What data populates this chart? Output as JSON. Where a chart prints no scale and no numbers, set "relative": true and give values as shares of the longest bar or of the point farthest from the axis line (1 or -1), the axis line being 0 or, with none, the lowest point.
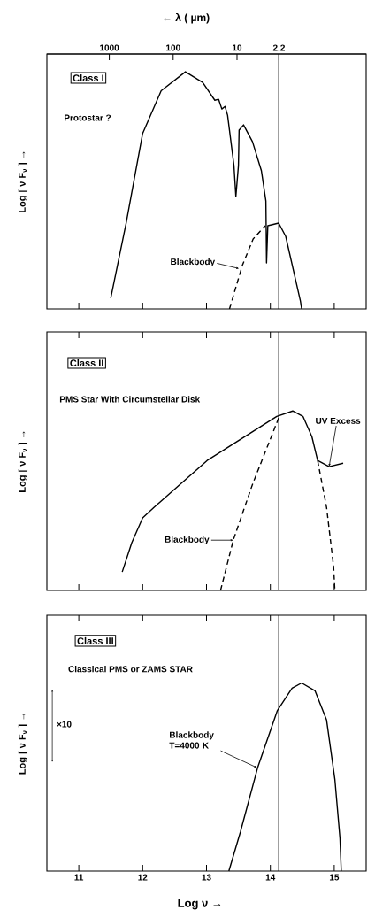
{
  "chart_data": [
    {
      "type": "line",
      "relative": true,
      "title": "Class I",
      "subtitle": "Protostar ?",
      "ylabel": "Log [ ν F$_{ν}$ ] →",
      "x2label": "← λ ( µm)",
      "xlim": [
        10.5,
        15.5
      ],
      "xticks": [
        11,
        12,
        13,
        14,
        15
      ],
      "tick_labels": false,
      "x2lim": [
        9500,
        0.095
      ],
      "x2ticks": [
        1000,
        100,
        10,
        2.2
      ],
      "log": "x2",
      "ref_lines": [
        {
          "axis": "x",
          "value": 14.13
        }
      ],
      "series": [
        {
          "color": "#000000",
          "line_style": "solid",
          "x": [
            11.5,
            11.74,
            12.0,
            12.29,
            12.67,
            12.94,
            13.13,
            13.19,
            13.24,
            13.29,
            13.33,
            13.43,
            13.46,
            13.5,
            13.51,
            13.58,
            13.72,
            13.86,
            13.93,
            13.94,
            13.96,
            14.13,
            14.24,
            14.47,
            14.49
          ],
          "values": [
            0.045,
            0.36,
            0.74,
            0.92,
            1.0,
            0.955,
            0.88,
            0.884,
            0.843,
            0.854,
            0.817,
            0.604,
            0.474,
            0.604,
            0.754,
            0.776,
            0.705,
            0.582,
            0.455,
            0.194,
            0.351,
            0.362,
            0.306,
            0.034,
            0.0
          ]
        },
        {
          "color": "#000000",
          "line_style": "dashed",
          "x": [
            13.36,
            13.56,
            13.73,
            13.92
          ],
          "values": [
            0.0,
            0.183,
            0.295,
            0.351
          ]
        }
      ],
      "annotations": [
        {
          "text": "Blackbody",
          "x": 13.51,
          "y": 0.17
        }
      ]
    },
    {
      "type": "line",
      "relative": true,
      "title": "Class II",
      "subtitle": "PMS Star With Circumstellar  Disk",
      "ylabel": "Log [ ν F$_{ν}$ ] →",
      "xlim": [
        10.5,
        15.5
      ],
      "xticks": [
        11,
        12,
        13,
        14,
        15
      ],
      "tick_labels": false,
      "ref_lines": [
        {
          "axis": "x",
          "value": 14.13
        }
      ],
      "series": [
        {
          "color": "#000000",
          "line_style": "solid",
          "x": [
            11.68,
            11.83,
            12.0,
            12.18,
            13.01,
            14.1,
            14.35,
            14.51,
            14.65,
            14.74,
            14.92,
            15.14
          ],
          "values": [
            0.103,
            0.266,
            0.404,
            0.463,
            0.724,
            0.97,
            1.0,
            0.97,
            0.857,
            0.724,
            0.69,
            0.709
          ]
        },
        {
          "color": "#000000",
          "line_style": "dashed",
          "x": [
            13.22,
            13.42,
            13.72,
            14.14,
            14.4,
            14.74,
            14.88,
            14.99,
            15.01
          ],
          "values": [
            0.0,
            0.281,
            0.591,
            0.97,
            null,
            0.724,
            0.463,
            0.133,
            0.0
          ]
        }
      ],
      "annotations": [
        {
          "text": "Blackbody",
          "x": 13.42,
          "y": 0.28
        },
        {
          "text": "UV Excess",
          "x": 14.92,
          "y": 0.69
        }
      ]
    },
    {
      "type": "line",
      "relative": true,
      "title": "Class III",
      "subtitle": "Classical PMS or ZAMS STAR",
      "ylabel": "Log [ ν F$_{ν}$ ] →",
      "xlabel": "Log ν →",
      "xlim": [
        10.5,
        15.5
      ],
      "xticks": [
        11,
        12,
        13,
        14,
        15
      ],
      "tick_labels": "x",
      "ref_lines": [
        {
          "axis": "x",
          "value": 14.13
        }
      ],
      "series": [
        {
          "color": "#000000",
          "line_style": "solid",
          "x": [
            13.35,
            13.53,
            13.8,
            14.11,
            14.34,
            14.49,
            14.7,
            14.88,
            15.01,
            15.09,
            15.11
          ],
          "values": [
            0.0,
            0.207,
            0.549,
            0.854,
            0.972,
            1.0,
            0.958,
            0.803,
            0.488,
            0.174,
            0.0
          ]
        }
      ],
      "annotations": [
        "×10",
        {
          "text": "Blackbody T=4000 K",
          "x": 13.79,
          "y": 0.55
        }
      ]
    }
  ]
}
